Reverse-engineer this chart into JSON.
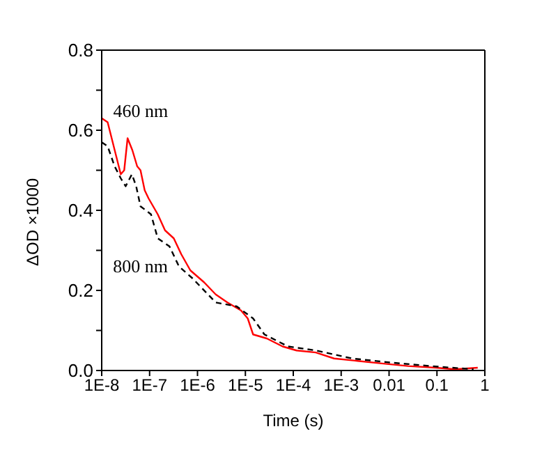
{
  "chart_data": {
    "type": "line",
    "xlabel": "Time (s)",
    "ylabel": "ΔOD ×1000",
    "log": "x",
    "marker": "none",
    "xlim": [
      1e-08,
      1
    ],
    "xticks": [
      {
        "value": 1e-08,
        "label": "1E-8"
      },
      {
        "value": 1e-07,
        "label": "1E-7"
      },
      {
        "value": 1e-06,
        "label": "1E-6"
      },
      {
        "value": 1e-05,
        "label": "1E-5"
      },
      {
        "value": 0.0001,
        "label": "1E-4"
      },
      {
        "value": 0.001,
        "label": "1E-3"
      },
      0.01,
      0.1,
      1
    ],
    "ylim": [
      0,
      0.8
    ],
    "yticks": [
      {
        "value": 0,
        "label": "0.0"
      },
      {
        "value": 0.1,
        "label": null
      },
      0.2,
      {
        "value": 0.3,
        "label": null
      },
      0.4,
      {
        "value": 0.5,
        "label": null
      },
      0.6,
      {
        "value": 0.7,
        "label": null
      },
      0.8
    ],
    "series": [
      {
        "name": "460 nm",
        "color": "#ff0000",
        "line_style": "solid",
        "x": [
          1e-08,
          1.33e-08,
          1.78e-08,
          2.5e-08,
          2.95e-08,
          3.47e-08,
          4.37e-08,
          5.5e-08,
          6.46e-08,
          7.9e-08,
          9.5e-08,
          1.48e-07,
          2.1e-07,
          3.2e-07,
          4.6e-07,
          7.1e-07,
          1.38e-06,
          2.4e-06,
          4.2e-06,
          8.1e-06,
          1.12e-05,
          1.45e-05,
          2.8e-05,
          6e-05,
          0.000117,
          0.000295,
          0.00071,
          0.0022,
          0.0065,
          0.025,
          0.095,
          0.24,
          0.71
        ],
        "values": [
          0.63,
          0.62,
          0.56,
          0.49,
          0.5,
          0.58,
          0.55,
          0.51,
          0.5,
          0.45,
          0.43,
          0.39,
          0.35,
          0.33,
          0.29,
          0.25,
          0.22,
          0.19,
          0.17,
          0.15,
          0.13,
          0.09,
          0.08,
          0.06,
          0.05,
          0.045,
          0.03,
          0.024,
          0.018,
          0.011,
          0.007,
          0.003,
          0.007
        ]
      },
      {
        "name": "800 nm",
        "color": "#000000",
        "line_style": "dashed",
        "x": [
          1e-08,
          1.33e-08,
          1.86e-08,
          2.5e-08,
          3.16e-08,
          4.27e-08,
          5.25e-08,
          6.46e-08,
          1.07e-07,
          1.48e-07,
          2.6e-07,
          4.1e-07,
          7.9e-07,
          2.4e-06,
          6.6e-06,
          1.45e-05,
          2.5e-05,
          7.8e-05,
          0.000295,
          0.0017,
          0.0105,
          0.095,
          0.58
        ],
        "values": [
          0.57,
          0.56,
          0.51,
          0.48,
          0.46,
          0.49,
          0.46,
          0.41,
          0.39,
          0.33,
          0.31,
          0.26,
          0.23,
          0.17,
          0.16,
          0.13,
          0.09,
          0.06,
          0.05,
          0.03,
          0.02,
          0.01,
          0.003
        ]
      }
    ]
  }
}
